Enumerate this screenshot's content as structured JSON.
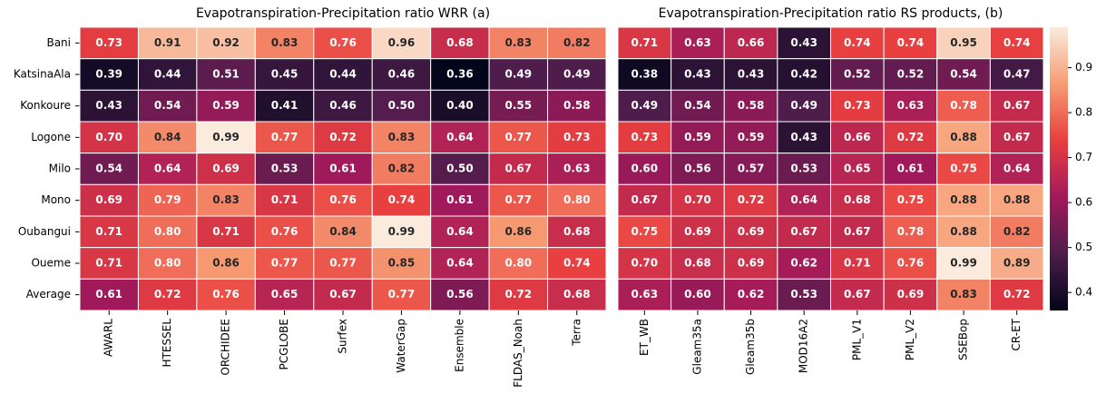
{
  "chart_data": [
    {
      "type": "heatmap",
      "title": "Evapotranspiration-Precipitation ratio WRR (a)",
      "colormap": "rocket",
      "y_categories": [
        "Bani",
        "KatsinaAla",
        "Konkoure",
        "Logone",
        "Milo",
        "Mono",
        "Oubangui",
        "Oueme",
        "Average"
      ],
      "x_categories": [
        "AWARL",
        "HTESSEL",
        "ORCHIDEE",
        "PCGLOBE",
        "Surfex",
        "WaterGap",
        "Ensemble",
        "FLDAS_Noah",
        "Terra"
      ],
      "values": [
        [
          0.73,
          0.91,
          0.92,
          0.83,
          0.76,
          0.96,
          0.68,
          0.83,
          0.82
        ],
        [
          0.39,
          0.44,
          0.51,
          0.45,
          0.44,
          0.46,
          0.36,
          0.49,
          0.49
        ],
        [
          0.43,
          0.54,
          0.59,
          0.41,
          0.46,
          0.5,
          0.4,
          0.55,
          0.58
        ],
        [
          0.7,
          0.84,
          0.99,
          0.77,
          0.72,
          0.83,
          0.64,
          0.77,
          0.73
        ],
        [
          0.54,
          0.64,
          0.69,
          0.53,
          0.61,
          0.82,
          0.5,
          0.67,
          0.63
        ],
        [
          0.69,
          0.79,
          0.83,
          0.71,
          0.76,
          0.74,
          0.61,
          0.77,
          0.8
        ],
        [
          0.71,
          0.8,
          0.71,
          0.76,
          0.84,
          0.99,
          0.64,
          0.86,
          0.68
        ],
        [
          0.71,
          0.8,
          0.86,
          0.77,
          0.77,
          0.85,
          0.64,
          0.8,
          0.74
        ],
        [
          0.61,
          0.72,
          0.76,
          0.65,
          0.67,
          0.77,
          0.56,
          0.72,
          0.68
        ]
      ],
      "value_labels": [
        [
          "0.73",
          "0.91",
          "0.92",
          "0.83",
          "0.76",
          "0.96",
          "0.68",
          "0.83",
          "0.82"
        ],
        [
          "0.39",
          "0.44",
          "0.51",
          "0.45",
          "0.44",
          "0.46",
          "0.36",
          "0.49",
          "0.49"
        ],
        [
          "0.43",
          "0.54",
          "0.59",
          "0.41",
          "0.46",
          "0.50",
          "0.40",
          "0.55",
          "0.58"
        ],
        [
          "0.70",
          "0.84",
          "0.99",
          "0.77",
          "0.72",
          "0.83",
          "0.64",
          "0.77",
          "0.73"
        ],
        [
          "0.54",
          "0.64",
          "0.69",
          "0.53",
          "0.61",
          "0.82",
          "0.50",
          "0.67",
          "0.63"
        ],
        [
          "0.69",
          "0.79",
          "0.83",
          "0.71",
          "0.76",
          "0.74",
          "0.61",
          "0.77",
          "0.80"
        ],
        [
          "0.71",
          "0.80",
          "0.71",
          "0.76",
          "0.84",
          "0.99",
          "0.64",
          "0.86",
          "0.68"
        ],
        [
          "0.71",
          "0.80",
          "0.86",
          "0.77",
          "0.77",
          "0.85",
          "0.64",
          "0.80",
          "0.74"
        ],
        [
          "0.61",
          "0.72",
          "0.76",
          "0.65",
          "0.67",
          "0.77",
          "0.56",
          "0.72",
          "0.68"
        ]
      ]
    },
    {
      "type": "heatmap",
      "title": "Evapotranspiration-Precipitation ratio RS products, (b)",
      "colormap": "rocket",
      "x_categories": [
        "ET_WB",
        "Gleam35a",
        "Gleam35b",
        "MOD16A2",
        "PML_V1",
        "PML_V2",
        "SSEBop",
        "CR-ET"
      ],
      "values": [
        [
          0.71,
          0.63,
          0.66,
          0.43,
          0.74,
          0.74,
          0.95,
          0.74
        ],
        [
          0.38,
          0.43,
          0.43,
          0.42,
          0.52,
          0.52,
          0.54,
          0.47
        ],
        [
          0.49,
          0.54,
          0.58,
          0.49,
          0.73,
          0.63,
          0.78,
          0.67
        ],
        [
          0.73,
          0.59,
          0.59,
          0.43,
          0.66,
          0.72,
          0.88,
          0.67
        ],
        [
          0.6,
          0.56,
          0.57,
          0.53,
          0.65,
          0.61,
          0.75,
          0.64
        ],
        [
          0.67,
          0.7,
          0.72,
          0.64,
          0.68,
          0.75,
          0.88,
          0.88
        ],
        [
          0.75,
          0.69,
          0.69,
          0.67,
          0.67,
          0.78,
          0.88,
          0.82
        ],
        [
          0.7,
          0.68,
          0.69,
          0.62,
          0.71,
          0.76,
          0.99,
          0.89
        ],
        [
          0.63,
          0.6,
          0.62,
          0.53,
          0.67,
          0.69,
          0.83,
          0.72
        ]
      ],
      "value_labels": [
        [
          "0.71",
          "0.63",
          "0.66",
          "0.43",
          "0.74",
          "0.74",
          "0.95",
          "0.74"
        ],
        [
          "0.38",
          "0.43",
          "0.43",
          "0.42",
          "0.52",
          "0.52",
          "0.54",
          "0.47"
        ],
        [
          "0.49",
          "0.54",
          "0.58",
          "0.49",
          "0.73",
          "0.63",
          "0.78",
          "0.67"
        ],
        [
          "0.73",
          "0.59",
          "0.59",
          "0.43",
          "0.66",
          "0.72",
          "0.88",
          "0.67"
        ],
        [
          "0.60",
          "0.56",
          "0.57",
          "0.53",
          "0.65",
          "0.61",
          "0.75",
          "0.64"
        ],
        [
          "0.67",
          "0.70",
          "0.72",
          "0.64",
          "0.68",
          "0.75",
          "0.88",
          "0.88"
        ],
        [
          "0.75",
          "0.69",
          "0.69",
          "0.67",
          "0.67",
          "0.78",
          "0.88",
          "0.82"
        ],
        [
          "0.70",
          "0.68",
          "0.69",
          "0.62",
          "0.71",
          "0.76",
          "0.99",
          "0.89"
        ],
        [
          "0.63",
          "0.60",
          "0.62",
          "0.53",
          "0.67",
          "0.69",
          "0.83",
          "0.72"
        ]
      ],
      "colorbar": {
        "lim": [
          0.36,
          0.99
        ],
        "ticks": [
          0.4,
          0.5,
          0.6,
          0.7,
          0.8,
          0.9
        ]
      }
    }
  ]
}
